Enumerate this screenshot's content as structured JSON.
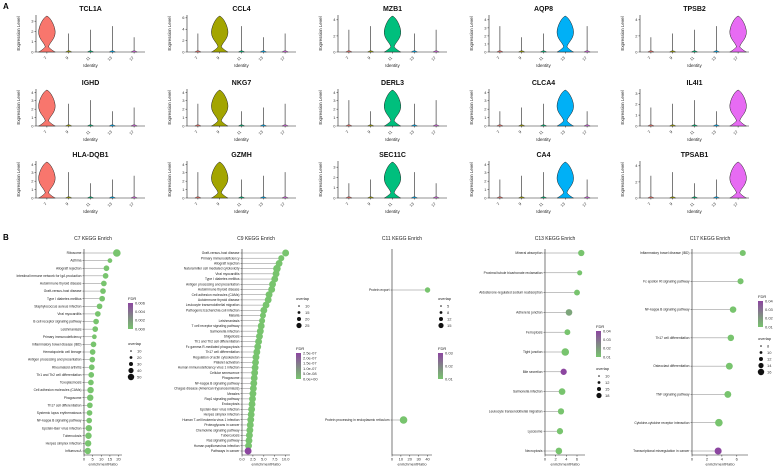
{
  "panels": {
    "a": "A",
    "b": "B"
  },
  "violin": {
    "ylabel": "Expression Level",
    "xlabel": "Identity",
    "clusters": [
      "7",
      "9",
      "11",
      "13",
      "17"
    ],
    "colors": [
      "#f8766d",
      "#a3a500",
      "#00bf7d",
      "#00b0f6",
      "#e76bf3"
    ],
    "genes": [
      {
        "name": "TCL1A",
        "peak": 0,
        "yticks": [
          "0",
          "1",
          "2",
          "3"
        ],
        "ymax": 3.6
      },
      {
        "name": "CCL4",
        "peak": 1,
        "yticks": [
          "0",
          "2",
          "4",
          "6"
        ],
        "ymax": 6.5
      },
      {
        "name": "MZB1",
        "peak": 2,
        "yticks": [
          "0",
          "2",
          "4"
        ],
        "ymax": 4.6
      },
      {
        "name": "AQP8",
        "peak": 3,
        "yticks": [
          "0",
          "1",
          "2",
          "3",
          "4"
        ],
        "ymax": 4.6
      },
      {
        "name": "TPSB2",
        "peak": 4,
        "yticks": [
          "0",
          "2",
          "4"
        ],
        "ymax": 4.6
      },
      {
        "name": "IGHD",
        "peak": 0,
        "yticks": [
          "0",
          "1",
          "2",
          "3",
          "4"
        ],
        "ymax": 4.4
      },
      {
        "name": "NKG7",
        "peak": 1,
        "yticks": [
          "0",
          "1",
          "2",
          "3",
          "4"
        ],
        "ymax": 4.4
      },
      {
        "name": "DERL3",
        "peak": 2,
        "yticks": [
          "0",
          "1",
          "2",
          "3",
          "4"
        ],
        "ymax": 4.4
      },
      {
        "name": "CLCA4",
        "peak": 3,
        "yticks": [
          "0",
          "1",
          "2",
          "3",
          "4"
        ],
        "ymax": 4.4
      },
      {
        "name": "IL4I1",
        "peak": 4,
        "yticks": [
          "0",
          "1",
          "2",
          "3"
        ],
        "ymax": 3.4
      },
      {
        "name": "HLA-DQB1",
        "peak": 0,
        "yticks": [
          "0",
          "1",
          "2",
          "3",
          "4"
        ],
        "ymax": 4.4
      },
      {
        "name": "GZMH",
        "peak": 1,
        "yticks": [
          "0",
          "1",
          "2",
          "3",
          "4"
        ],
        "ymax": 4.4
      },
      {
        "name": "SEC11C",
        "peak": 2,
        "yticks": [
          "0",
          "1",
          "2",
          "3"
        ],
        "ymax": 3.6
      },
      {
        "name": "CA4",
        "peak": 3,
        "yticks": [
          "0",
          "1",
          "2",
          "3",
          "4"
        ],
        "ymax": 4.4
      },
      {
        "name": "TPSAB1",
        "peak": 4,
        "yticks": [
          "0",
          "2",
          "4"
        ],
        "ymax": 4.6
      }
    ]
  },
  "kegg": [
    {
      "title": "C7 KEGG Enrich",
      "xlabel": "enrichmentRatio",
      "xticks": [
        "0",
        "5",
        "10",
        "15",
        "20"
      ],
      "xmax": 22,
      "terms": [
        {
          "name": "Ribosome",
          "ratio": 19,
          "overlap": 50,
          "fdr": 0.0
        },
        {
          "name": "Asthma",
          "ratio": 15,
          "overlap": 10,
          "fdr": 0.0
        },
        {
          "name": "Allograft rejection",
          "ratio": 13,
          "overlap": 20,
          "fdr": 0.0
        },
        {
          "name": "Intestinal immune network for IgA production",
          "ratio": 12.5,
          "overlap": 20,
          "fdr": 0.0
        },
        {
          "name": "Autoimmune thyroid disease",
          "ratio": 11.5,
          "overlap": 20,
          "fdr": 0.0
        },
        {
          "name": "Graft-versus-host disease",
          "ratio": 11,
          "overlap": 20,
          "fdr": 0.0
        },
        {
          "name": "Type I diabetes mellitus",
          "ratio": 10.5,
          "overlap": 20,
          "fdr": 0.0
        },
        {
          "name": "Staphylococcus aureus infection",
          "ratio": 9,
          "overlap": 20,
          "fdr": 0.0
        },
        {
          "name": "Viral myocarditis",
          "ratio": 8,
          "overlap": 20,
          "fdr": 0.0
        },
        {
          "name": "B cell receptor signaling pathway",
          "ratio": 7,
          "overlap": 20,
          "fdr": 0.0
        },
        {
          "name": "Leishmaniasis",
          "ratio": 6.5,
          "overlap": 20,
          "fdr": 0.0
        },
        {
          "name": "Primary immunodeficiency",
          "ratio": 6,
          "overlap": 10,
          "fdr": 0.0
        },
        {
          "name": "Inflammatory bowel disease (IBD)",
          "ratio": 5.5,
          "overlap": 20,
          "fdr": 0.0
        },
        {
          "name": "Hematopoietic cell lineage",
          "ratio": 5,
          "overlap": 20,
          "fdr": 0.0
        },
        {
          "name": "Antigen processing and presentation",
          "ratio": 4.8,
          "overlap": 20,
          "fdr": 0.0
        },
        {
          "name": "Rheumatoid arthritis",
          "ratio": 4.5,
          "overlap": 20,
          "fdr": 0.0
        },
        {
          "name": "Th1 and Th2 cell differentiation",
          "ratio": 4.2,
          "overlap": 20,
          "fdr": 0.0
        },
        {
          "name": "Toxoplasmosis",
          "ratio": 4,
          "overlap": 20,
          "fdr": 0.0
        },
        {
          "name": "Cell adhesion molecules (CAMs)",
          "ratio": 3.8,
          "overlap": 30,
          "fdr": 0.0
        },
        {
          "name": "Phagosome",
          "ratio": 3.6,
          "overlap": 30,
          "fdr": 0.0
        },
        {
          "name": "Th17 cell differentiation",
          "ratio": 3.4,
          "overlap": 20,
          "fdr": 0.0
        },
        {
          "name": "Systemic lupus erythematosus",
          "ratio": 3.2,
          "overlap": 20,
          "fdr": 0.0
        },
        {
          "name": "NF-kappa B signaling pathway",
          "ratio": 3.0,
          "overlap": 20,
          "fdr": 0.0
        },
        {
          "name": "Epstein-Barr virus infection",
          "ratio": 2.8,
          "overlap": 30,
          "fdr": 0.0
        },
        {
          "name": "Tuberculosis",
          "ratio": 2.6,
          "overlap": 30,
          "fdr": 0.0
        },
        {
          "name": "Herpes simplex infection",
          "ratio": 2.4,
          "overlap": 30,
          "fdr": 0.0
        },
        {
          "name": "Influenza A",
          "ratio": 2.2,
          "overlap": 30,
          "fdr": 0.0
        }
      ],
      "legend": {
        "fdr_title": "FDR",
        "fdr_ticks": [
          "0.006",
          "0.004",
          "0.002",
          "0.000"
        ],
        "overlap_title": "overlap",
        "overlap_ticks": [
          "10",
          "20",
          "30",
          "40",
          "50"
        ]
      }
    },
    {
      "title": "C9 KEGG Enrich",
      "xlabel": "enrichmentRatio",
      "xticks": [
        "0.0",
        "2.5",
        "5.0",
        "7.5",
        "10.0"
      ],
      "xmax": 11,
      "terms": [
        {
          "name": "Graft-versus-host disease",
          "ratio": 10,
          "overlap": 15,
          "fdr": 0.0
        },
        {
          "name": "Primary immunodeficiency",
          "ratio": 9,
          "overlap": 10,
          "fdr": 0.0
        },
        {
          "name": "Allograft rejection",
          "ratio": 8.5,
          "overlap": 15,
          "fdr": 0.0
        },
        {
          "name": "Natural killer cell mediated cytotoxicity",
          "ratio": 8,
          "overlap": 20,
          "fdr": 0.0
        },
        {
          "name": "Viral myocarditis",
          "ratio": 7.8,
          "overlap": 15,
          "fdr": 0.0
        },
        {
          "name": "Type I diabetes mellitus",
          "ratio": 7.5,
          "overlap": 15,
          "fdr": 0.0
        },
        {
          "name": "Antigen processing and presentation",
          "ratio": 7,
          "overlap": 15,
          "fdr": 0.0
        },
        {
          "name": "Autoimmune thyroid disease",
          "ratio": 6.8,
          "overlap": 15,
          "fdr": 0.0
        },
        {
          "name": "Cell adhesion molecules (CAMs)",
          "ratio": 6.2,
          "overlap": 15,
          "fdr": 0.0
        },
        {
          "name": "Autoimmune thyroid disease",
          "ratio": 6,
          "overlap": 15,
          "fdr": 0.0
        },
        {
          "name": "Leukocyte transendothelial migration",
          "ratio": 5.5,
          "overlap": 15,
          "fdr": 0.0
        },
        {
          "name": "Pathogenic Escherichia coli infection",
          "ratio": 5,
          "overlap": 15,
          "fdr": 0.0
        },
        {
          "name": "Malaria",
          "ratio": 4.8,
          "overlap": 10,
          "fdr": 0.0
        },
        {
          "name": "Leishmaniasis",
          "ratio": 4.6,
          "overlap": 10,
          "fdr": 0.0
        },
        {
          "name": "T cell receptor signaling pathway",
          "ratio": 4.4,
          "overlap": 15,
          "fdr": 0.0
        },
        {
          "name": "Salmonella infection",
          "ratio": 4.2,
          "overlap": 15,
          "fdr": 0.0
        },
        {
          "name": "Shigellosis",
          "ratio": 4,
          "overlap": 15,
          "fdr": 0.0
        },
        {
          "name": "Th1 and Th2 cell differentiation",
          "ratio": 3.8,
          "overlap": 15,
          "fdr": 0.0
        },
        {
          "name": "Fc gamma R-mediated phagocytosis",
          "ratio": 3.6,
          "overlap": 15,
          "fdr": 0.0
        },
        {
          "name": "Th17 cell differentiation",
          "ratio": 3.4,
          "overlap": 15,
          "fdr": 0.0
        },
        {
          "name": "Regulation of actin cytoskeleton",
          "ratio": 3.2,
          "overlap": 15,
          "fdr": 0.0
        },
        {
          "name": "Platelet activation",
          "ratio": 3.1,
          "overlap": 15,
          "fdr": 0.0
        },
        {
          "name": "Human immunodeficiency virus 1 infection",
          "ratio": 3.0,
          "overlap": 15,
          "fdr": 0.0
        },
        {
          "name": "Cellular senescence",
          "ratio": 2.9,
          "overlap": 15,
          "fdr": 0.0
        },
        {
          "name": "Phagosome",
          "ratio": 2.8,
          "overlap": 15,
          "fdr": 0.0
        },
        {
          "name": "NF-kappa B signaling pathway",
          "ratio": 2.7,
          "overlap": 15,
          "fdr": 0.0
        },
        {
          "name": "Chagas disease (American trypanosomiasis)",
          "ratio": 2.6,
          "overlap": 15,
          "fdr": 0.0
        },
        {
          "name": "Measles",
          "ratio": 2.5,
          "overlap": 15,
          "fdr": 0.0
        },
        {
          "name": "Rap1 signaling pathway",
          "ratio": 2.4,
          "overlap": 15,
          "fdr": 0.0
        },
        {
          "name": "Endocytosis",
          "ratio": 2.3,
          "overlap": 15,
          "fdr": 0.0
        },
        {
          "name": "Epstein-Barr virus infection",
          "ratio": 2.2,
          "overlap": 15,
          "fdr": 0.0
        },
        {
          "name": "Herpes simplex infection",
          "ratio": 2.1,
          "overlap": 15,
          "fdr": 0.0
        },
        {
          "name": "Human T-cell leukemia virus 1 infection",
          "ratio": 2.0,
          "overlap": 15,
          "fdr": 0.0
        },
        {
          "name": "Proteoglycans in cancer",
          "ratio": 1.9,
          "overlap": 15,
          "fdr": 0.0
        },
        {
          "name": "Chemokine signaling pathway",
          "ratio": 1.8,
          "overlap": 15,
          "fdr": 0.0
        },
        {
          "name": "Tuberculosis",
          "ratio": 1.7,
          "overlap": 15,
          "fdr": 0.0
        },
        {
          "name": "Ras signaling pathway",
          "ratio": 1.6,
          "overlap": 15,
          "fdr": 0.0
        },
        {
          "name": "Human papillomavirus infection",
          "ratio": 1.5,
          "overlap": 15,
          "fdr": 0.0
        },
        {
          "name": "Pathways in cancer",
          "ratio": 1.4,
          "overlap": 15,
          "fdr": 2.5e-07
        }
      ],
      "legend": {
        "overlap_title": "overlap",
        "overlap_ticks": [
          "10",
          "15",
          "20",
          "25"
        ],
        "fdr_title": "FDR",
        "fdr_ticks": [
          "2.5e-07",
          "2.0e-07",
          "1.5e-07",
          "1.0e-07",
          "5.0e-08",
          "0.0e+00"
        ]
      }
    },
    {
      "title": "C11 KEGG Enrich",
      "xlabel": "enrichmentRatio",
      "xticks": [
        "0",
        "10",
        "20",
        "30",
        "40"
      ],
      "xmax": 45,
      "terms": [
        {
          "name": "Protein export",
          "ratio": 40,
          "overlap": 5,
          "fdr": 0.0
        },
        {
          "name": "Protein processing in endoplasmic reticulum",
          "ratio": 13,
          "overlap": 15,
          "fdr": 0.0
        }
      ],
      "legend": {
        "overlap_title": "overlap",
        "overlap_ticks": [
          "5",
          "8",
          "12",
          "15"
        ],
        "fdr_title": "FDR",
        "fdr_ticks": [
          "0.03",
          "0.02",
          "0.01"
        ]
      }
    },
    {
      "title": "C13 KEGG Enrich",
      "xlabel": "enrichmentRatio",
      "xticks": [
        "0",
        "2",
        "4",
        "6"
      ],
      "xmax": 7.5,
      "terms": [
        {
          "name": "Mineral absorption",
          "ratio": 6.8,
          "overlap": 10,
          "fdr": 0.0
        },
        {
          "name": "Proximal tubule bicarbonate reclamation",
          "ratio": 6.5,
          "overlap": 5,
          "fdr": 0.0
        },
        {
          "name": "Aldosterone-regulated sodium reabsorption",
          "ratio": 6,
          "overlap": 8,
          "fdr": 0.0
        },
        {
          "name": "Adherens junction",
          "ratio": 4.5,
          "overlap": 12,
          "fdr": 0.01
        },
        {
          "name": "Ferroptosis",
          "ratio": 4.2,
          "overlap": 8,
          "fdr": 0.0
        },
        {
          "name": "Tight junction",
          "ratio": 3.8,
          "overlap": 18,
          "fdr": 0.0
        },
        {
          "name": "Bile secretion",
          "ratio": 3.5,
          "overlap": 10,
          "fdr": 0.04
        },
        {
          "name": "Salmonella infection",
          "ratio": 3.2,
          "overlap": 12,
          "fdr": 0.0
        },
        {
          "name": "Leukocyte transendothelial migration",
          "ratio": 3.0,
          "overlap": 10,
          "fdr": 0.0
        },
        {
          "name": "Lysosome",
          "ratio": 2.8,
          "overlap": 10,
          "fdr": 0.0
        },
        {
          "name": "Necroptosis",
          "ratio": 2.6,
          "overlap": 12,
          "fdr": 0.0
        }
      ],
      "legend": {
        "fdr_title": "FDR",
        "fdr_ticks": [
          "0.04",
          "0.03",
          "0.02",
          "0.01"
        ],
        "overlap_title": "overlap",
        "overlap_ticks": [
          "10",
          "12",
          "15",
          "18"
        ]
      }
    },
    {
      "title": "C17 KEGG Enrich",
      "xlabel": "enrichmentRatio",
      "xticks": [
        "0",
        "2",
        "4",
        "6"
      ],
      "xmax": 7.5,
      "terms": [
        {
          "name": "Inflammatory bowel disease (IBD)",
          "ratio": 6.8,
          "overlap": 8,
          "fdr": 0.0
        },
        {
          "name": "Fc epsilon RI signaling pathway",
          "ratio": 6.5,
          "overlap": 8,
          "fdr": 0.0
        },
        {
          "name": "NF-kappa B signaling pathway",
          "ratio": 5.5,
          "overlap": 10,
          "fdr": 0.0
        },
        {
          "name": "Th17 cell differentiation",
          "ratio": 5.2,
          "overlap": 10,
          "fdr": 0.0
        },
        {
          "name": "Osteoclast differentiation",
          "ratio": 5.0,
          "overlap": 12,
          "fdr": 0.0
        },
        {
          "name": "TNF signaling pathway",
          "ratio": 4.8,
          "overlap": 12,
          "fdr": 0.0
        },
        {
          "name": "Cytokine-cytokine receptor interaction",
          "ratio": 3.6,
          "overlap": 16,
          "fdr": 0.0
        },
        {
          "name": "Transcriptional misregulation in cancer",
          "ratio": 3.5,
          "overlap": 13,
          "fdr": 0.04
        }
      ],
      "legend": {
        "fdr_title": "FDR",
        "fdr_ticks": [
          "0.04",
          "0.03",
          "0.02",
          "0.01"
        ],
        "overlap_title": "overlap",
        "overlap_ticks": [
          "8",
          "10",
          "12",
          "14",
          "16"
        ]
      }
    }
  ]
}
